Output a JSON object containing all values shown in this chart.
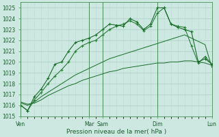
{
  "xlabel": "Pression niveau de la mer( hPa )",
  "ylim": [
    1015,
    1025.5
  ],
  "yticks": [
    1015,
    1016,
    1017,
    1018,
    1019,
    1020,
    1021,
    1022,
    1023,
    1024,
    1025
  ],
  "bg_color": "#cce8e0",
  "grid_color_major": "#aaccc4",
  "grid_color_minor": "#bdddd6",
  "line_color_dark": "#1a6b2a",
  "line_color_med": "#2a7a3a",
  "vline_color": "#4a8a5a",
  "vlines": [
    0,
    60,
    72,
    120,
    168
  ],
  "xtick_positions": [
    0,
    60,
    72,
    120,
    168
  ],
  "xtick_labels": [
    "Ven",
    "Mar",
    "Sam",
    "Dim",
    "Lun"
  ],
  "series1_x": [
    0,
    6,
    12,
    18,
    24,
    30,
    36,
    42,
    48,
    54,
    60,
    66,
    72,
    78,
    84,
    90,
    96,
    102,
    108,
    114,
    120,
    126,
    132,
    138,
    144,
    150,
    156,
    162,
    168
  ],
  "series1_y": [
    1016.0,
    1015.5,
    1016.8,
    1017.5,
    1018.5,
    1019.8,
    1020.0,
    1021.0,
    1021.8,
    1022.0,
    1022.2,
    1022.5,
    1023.0,
    1023.5,
    1023.4,
    1023.3,
    1024.0,
    1023.7,
    1023.0,
    1023.5,
    1025.0,
    1025.0,
    1023.5,
    1023.2,
    1023.0,
    1022.8,
    1020.0,
    1020.3,
    1019.8
  ],
  "series2_x": [
    0,
    6,
    12,
    18,
    24,
    30,
    36,
    42,
    48,
    54,
    60,
    66,
    72,
    78,
    84,
    90,
    96,
    102,
    108,
    114,
    120,
    126,
    132,
    138,
    144,
    150,
    156,
    162,
    168
  ],
  "series2_y": [
    1016.0,
    1015.5,
    1016.5,
    1017.2,
    1018.0,
    1018.7,
    1019.3,
    1020.0,
    1021.0,
    1021.5,
    1021.8,
    1022.0,
    1022.5,
    1023.0,
    1023.3,
    1023.5,
    1023.8,
    1023.5,
    1022.9,
    1023.3,
    1024.5,
    1025.0,
    1023.5,
    1023.3,
    1023.2,
    1021.5,
    1019.9,
    1020.5,
    1019.8
  ],
  "series3_x": [
    0,
    6,
    12,
    18,
    24,
    30,
    36,
    42,
    48,
    54,
    60,
    66,
    72,
    78,
    84,
    90,
    96,
    102,
    108,
    114,
    120,
    126,
    132,
    138,
    144,
    150,
    156,
    162,
    168
  ],
  "series3_y": [
    1016.2,
    1016.0,
    1016.3,
    1016.8,
    1017.2,
    1017.6,
    1018.0,
    1018.4,
    1018.8,
    1019.1,
    1019.4,
    1019.7,
    1020.0,
    1020.3,
    1020.5,
    1020.7,
    1020.9,
    1021.1,
    1021.3,
    1021.5,
    1021.7,
    1021.9,
    1022.1,
    1022.3,
    1022.5,
    1022.2,
    1021.9,
    1021.6,
    1019.5
  ],
  "series4_x": [
    0,
    6,
    12,
    18,
    24,
    30,
    36,
    42,
    48,
    54,
    60,
    66,
    72,
    78,
    84,
    90,
    96,
    102,
    108,
    114,
    120,
    126,
    132,
    138,
    144,
    150,
    156,
    162,
    168
  ],
  "series4_y": [
    1016.3,
    1016.1,
    1016.2,
    1016.5,
    1016.9,
    1017.2,
    1017.5,
    1017.8,
    1018.0,
    1018.3,
    1018.5,
    1018.7,
    1018.9,
    1019.1,
    1019.2,
    1019.4,
    1019.5,
    1019.6,
    1019.7,
    1019.8,
    1019.9,
    1019.9,
    1020.0,
    1020.0,
    1020.1,
    1020.1,
    1020.0,
    1019.9,
    1019.7
  ]
}
